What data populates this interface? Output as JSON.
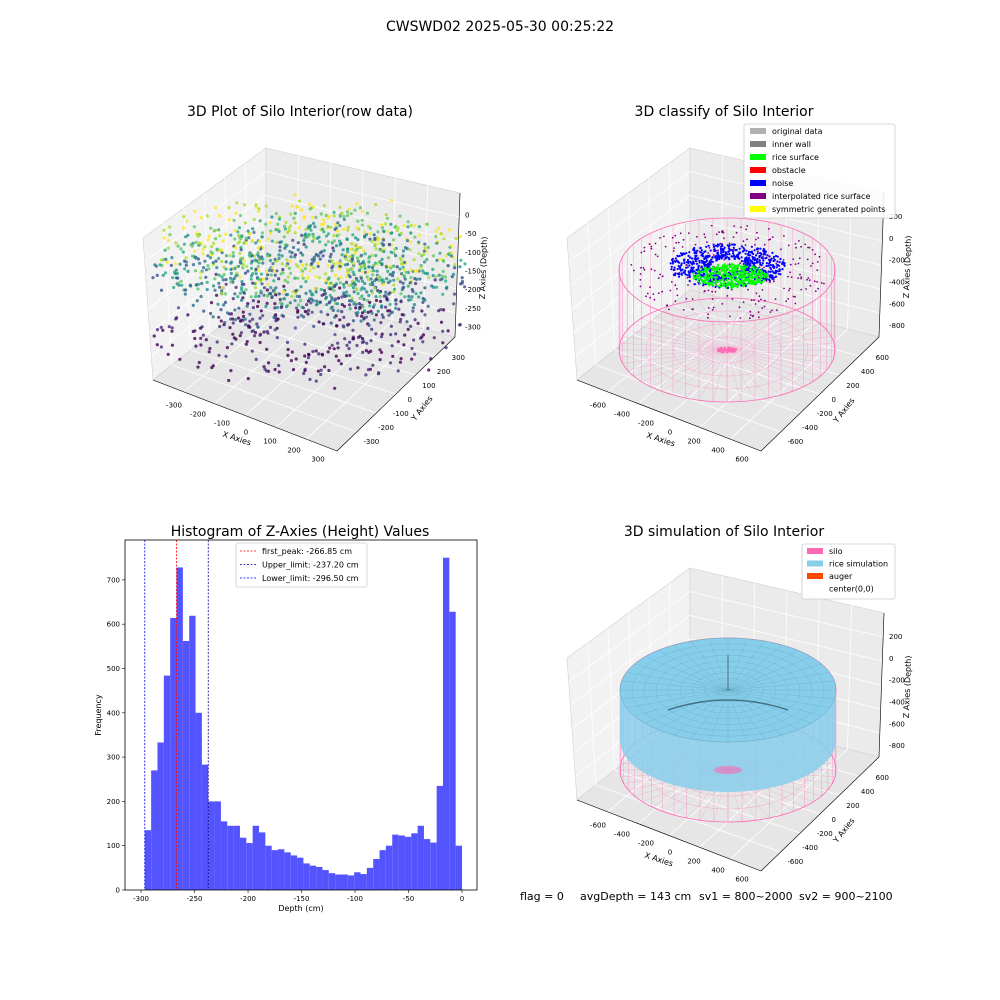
{
  "suptitle": "CWSWD02 2025-05-30 00:25:22",
  "chart_data": [
    {
      "type": "scatter",
      "subtype": "3d",
      "title": "3D Plot of Silo Interior(row data)",
      "xlabel": "X Axies",
      "ylabel": "Y Axies",
      "zlabel": "Z Axies (Depth)",
      "x_ticks": [
        "-300",
        "-200",
        "-100",
        "0",
        "100",
        "200",
        "300"
      ],
      "y_ticks": [
        "-300",
        "-200",
        "-100",
        "0",
        "100",
        "200",
        "300"
      ],
      "z_ticks": [
        "0",
        "-50",
        "-100",
        "-150",
        "-200",
        "-250",
        "-300"
      ],
      "zlim": [
        -320,
        0
      ],
      "colormap": "viridis"
    },
    {
      "type": "scatter",
      "subtype": "3d",
      "title": "3D classify of Silo Interior",
      "xlabel": "X Axies",
      "ylabel": "Y Axies",
      "zlabel": "Z Axies (Depth)",
      "x_ticks": [
        "-600",
        "-400",
        "-200",
        "0",
        "200",
        "400",
        "600"
      ],
      "y_ticks": [
        "-600",
        "-400",
        "-200",
        "0",
        "200",
        "400",
        "600"
      ],
      "z_ticks": [
        "200",
        "0",
        "-200",
        "-400",
        "-600",
        "-800"
      ],
      "legend_position": "top-right",
      "legend": [
        {
          "label": "original data",
          "color": "#b0b0b0"
        },
        {
          "label": "inner wall",
          "color": "#808080"
        },
        {
          "label": "rice surface",
          "color": "#00ff00"
        },
        {
          "label": "obstacle",
          "color": "#ff0000"
        },
        {
          "label": "noise",
          "color": "#0000ff"
        },
        {
          "label": "interpolated rice surface",
          "color": "#800080"
        },
        {
          "label": "symmetric generated points",
          "color": "#ffff00"
        }
      ],
      "silo_color": "#ff69b4"
    },
    {
      "type": "bar",
      "subtype": "histogram",
      "title": "Histogram of Z-Axies (Height) Values",
      "xlabel": "Depth (cm)",
      "ylabel": "Frequency",
      "xlim": [
        -315,
        14
      ],
      "ylim": [
        0,
        790
      ],
      "x_ticks": [
        -300,
        -250,
        -200,
        -150,
        -100,
        -50,
        0
      ],
      "y_ticks": [
        0,
        100,
        200,
        300,
        400,
        500,
        600,
        700
      ],
      "bin_start": -296.5,
      "bin_width": 5.93,
      "values": [
        135,
        270,
        333,
        484,
        614,
        728,
        562,
        619,
        400,
        283,
        200,
        200,
        155,
        145,
        145,
        118,
        106,
        145,
        130,
        100,
        90,
        92,
        85,
        78,
        73,
        60,
        55,
        52,
        45,
        38,
        35,
        35,
        33,
        40,
        36,
        50,
        70,
        90,
        100,
        125,
        123,
        120,
        128,
        145,
        115,
        107,
        235,
        750,
        628,
        100
      ],
      "bar_color": "#4b4bff",
      "lines": [
        {
          "label": "first_peak: -266.85 cm",
          "x": -266.85,
          "color": "#ff0000"
        },
        {
          "label": "Upper_limit: -237.20 cm",
          "x": -237.2,
          "color": "#00008b"
        },
        {
          "label": "Lower_limit: -296.50 cm",
          "x": -296.5,
          "color": "#0000ff"
        }
      ],
      "legend_position": "top-center"
    },
    {
      "type": "scatter",
      "subtype": "3d-surface",
      "title": "3D simulation of Silo Interior",
      "xlabel": "X Axies",
      "ylabel": "Y Axies",
      "zlabel": "Z Axies (Depth)",
      "x_ticks": [
        "-600",
        "-400",
        "-200",
        "0",
        "200",
        "400",
        "600"
      ],
      "y_ticks": [
        "-600",
        "-400",
        "-200",
        "0",
        "200",
        "400",
        "600"
      ],
      "z_ticks": [
        "200",
        "0",
        "-200",
        "-400",
        "-600",
        "-800"
      ],
      "legend_position": "top-right",
      "legend": [
        {
          "label": "silo",
          "color": "#ff69b4"
        },
        {
          "label": "rice simulation",
          "color": "#87ceeb"
        },
        {
          "label": "auger",
          "color": "#ff4500"
        },
        {
          "label": "center(0,0)",
          "color": "#ffffff"
        }
      ]
    }
  ],
  "footer": {
    "flag": "flag = 0",
    "avg": "avgDepth = 143 cm",
    "sv1": "sv1 = 800~2000",
    "sv2": "sv2 = 900~2100"
  }
}
